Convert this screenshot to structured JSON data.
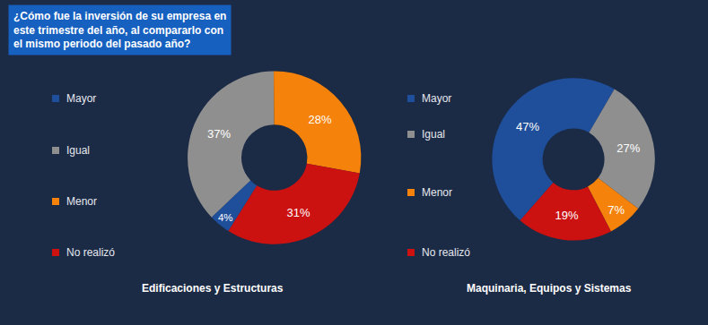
{
  "title": [
    "¿Cómo fue la inversión de su empresa en",
    "este trimestre del año, al compararlo con",
    "el mismo periodo del pasado año?"
  ],
  "chart_data": [
    {
      "type": "pie",
      "title": "Edificaciones y Estructuras",
      "categories": [
        "Mayor",
        "Igual",
        "Menor",
        "No realizó"
      ],
      "values": [
        4,
        37,
        28,
        31
      ],
      "value_labels": [
        "4%",
        "37%",
        "28%",
        "31%"
      ],
      "colors": [
        "#1f4e9a",
        "#8f8f8f",
        "#f5820a",
        "#cc1111"
      ],
      "data_labels": true
    },
    {
      "type": "pie",
      "title": "Maquinaria, Equipos y Sistemas",
      "categories": [
        "Mayor",
        "Igual",
        "Menor",
        "No realizó"
      ],
      "values": [
        47,
        27,
        7,
        19
      ],
      "value_labels": [
        "47%",
        "27%",
        "7%",
        "19%"
      ],
      "colors": [
        "#1f4e9a",
        "#8f8f8f",
        "#f5820a",
        "#cc1111"
      ],
      "data_labels": true
    }
  ]
}
